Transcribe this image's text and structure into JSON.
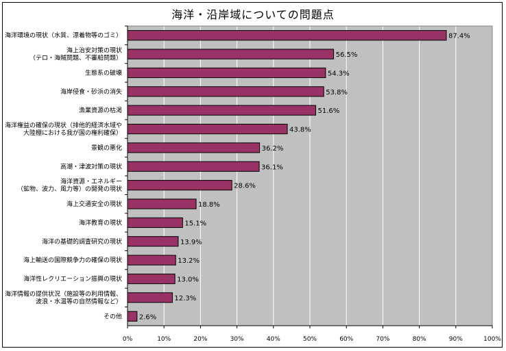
{
  "chart_data": {
    "type": "bar",
    "orientation": "horizontal",
    "title": "海洋・沿岸域についての問題点",
    "categories": [
      [
        "海洋環境の現状（水質、漂着物等のゴミ）"
      ],
      [
        "海上治安対策の現状",
        "（テロ・海賊問題、不審船問題）"
      ],
      [
        "生態系の破壊"
      ],
      [
        "海岸侵食・砂浜の消失"
      ],
      [
        "漁業資源の枯渇"
      ],
      [
        "海洋権益の確保の現状（排他的経済水域や",
        "大陸棚における我が国の権利確保）"
      ],
      [
        "景観の悪化"
      ],
      [
        "高潮・津波対策の現状"
      ],
      [
        "海洋資源・エネルギー",
        "（鉱物、波力、風力等）の開発の現状"
      ],
      [
        "海上交通安全の現状"
      ],
      [
        "海洋教育の現状"
      ],
      [
        "海洋の基礎的調査研究の現状"
      ],
      [
        "海上輸送の国際競争力の確保の現状"
      ],
      [
        "海洋性レクリエーション振興の現状"
      ],
      [
        "海洋情報の提供状況（施設等の利用情報、",
        "波浪・水温等の自然情報など）"
      ],
      [
        "その他"
      ]
    ],
    "values": [
      87.4,
      56.5,
      54.3,
      53.8,
      51.6,
      43.8,
      36.2,
      36.1,
      28.6,
      18.8,
      15.1,
      13.9,
      13.2,
      13.0,
      12.3,
      2.6
    ],
    "value_labels": [
      "87.4%",
      "56.5%",
      "54.3%",
      "53.8%",
      "51.6%",
      "43.8%",
      "36.2%",
      "36.1%",
      "28.6%",
      "18.8%",
      "15.1%",
      "13.9%",
      "13.2%",
      "13.0%",
      "12.3%",
      "2.6%"
    ],
    "xlim": [
      0,
      100
    ],
    "x_ticks": [
      0,
      10,
      20,
      30,
      40,
      50,
      60,
      70,
      80,
      90,
      100
    ],
    "x_tick_labels": [
      "0%",
      "10%",
      "20%",
      "30%",
      "40%",
      "50%",
      "60%",
      "70%",
      "80%",
      "90%",
      "100%"
    ],
    "grid": true,
    "colors": {
      "bar": "#993366",
      "bar_edge": "#000000",
      "plot_bg": "#c0c0c0",
      "grid": "#ffffff"
    }
  }
}
